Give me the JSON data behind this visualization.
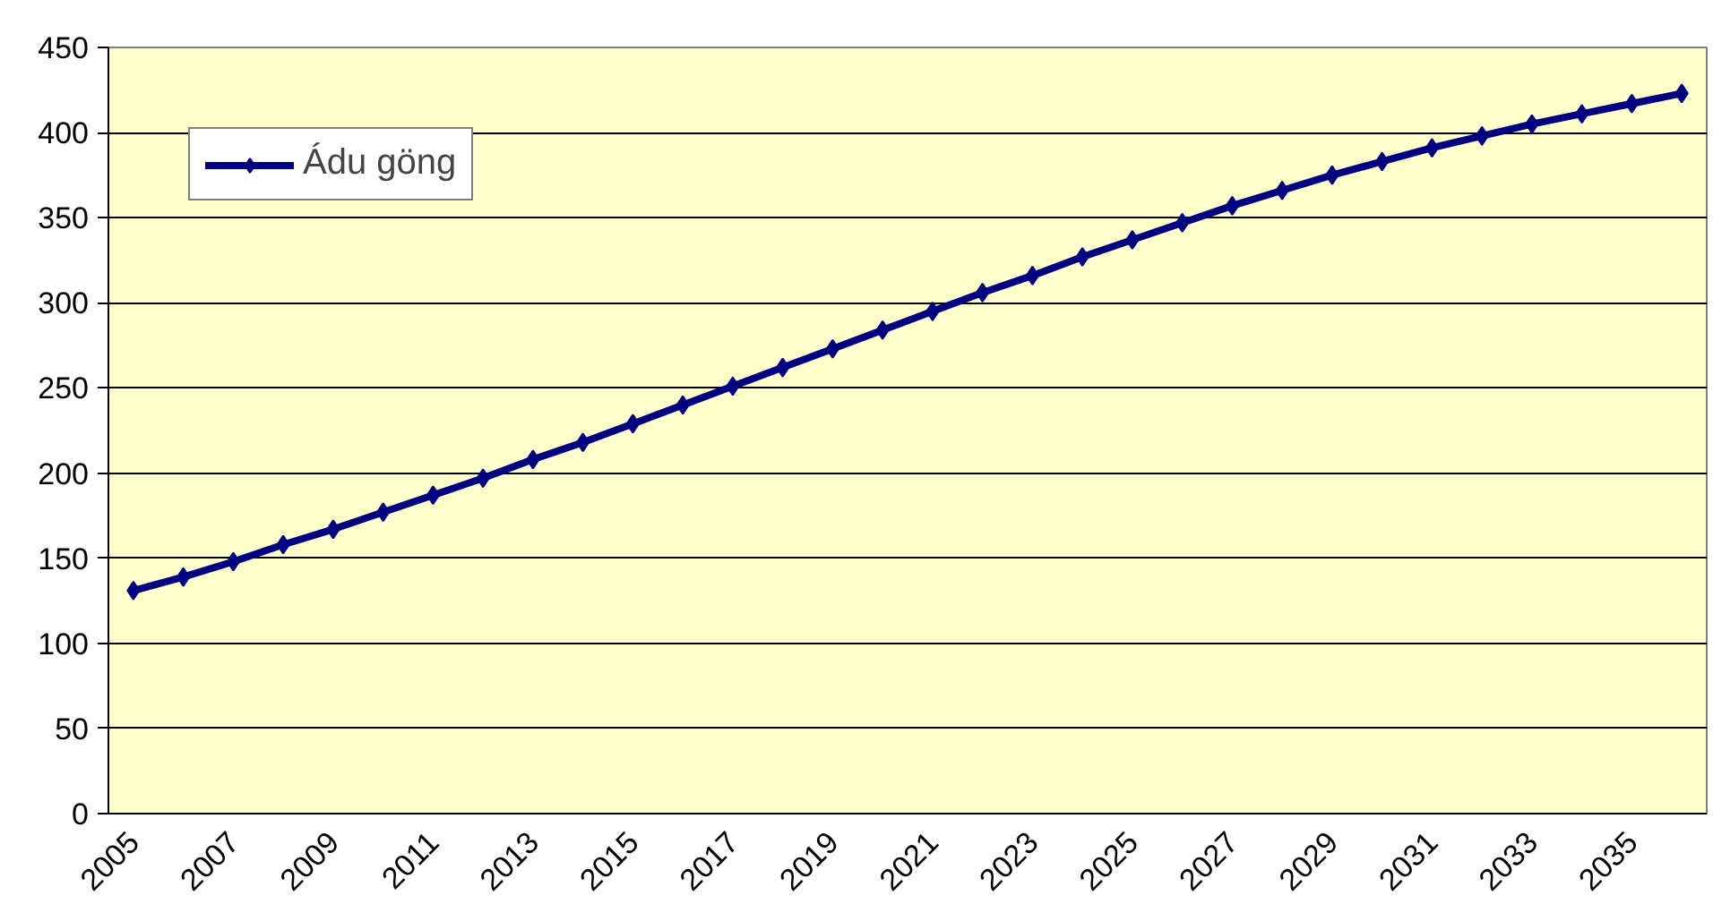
{
  "chart_data": {
    "type": "line",
    "categories": [
      "2005",
      null,
      "2007",
      null,
      "2009",
      null,
      "2011",
      null,
      "2013",
      null,
      "2015",
      null,
      "2017",
      null,
      "2019",
      null,
      "2021",
      null,
      "2023",
      null,
      "2025",
      null,
      "2027",
      null,
      "2029",
      null,
      "2031",
      null,
      "2033",
      null,
      "2035",
      null
    ],
    "series": [
      {
        "name": "Ádu göng",
        "color": "#000080",
        "values": [
          131,
          139,
          148,
          158,
          167,
          177,
          187,
          197,
          208,
          218,
          229,
          240,
          251,
          262,
          273,
          284,
          295,
          306,
          316,
          327,
          337,
          347,
          357,
          366,
          375,
          383,
          391,
          398,
          405,
          411,
          417,
          423
        ]
      }
    ],
    "ylim": [
      0,
      450
    ],
    "yticks": [
      0,
      50,
      100,
      150,
      200,
      250,
      300,
      350,
      400,
      450
    ],
    "grid": "y",
    "legend": "top left",
    "marker": "diamond",
    "line_style": "solid"
  }
}
